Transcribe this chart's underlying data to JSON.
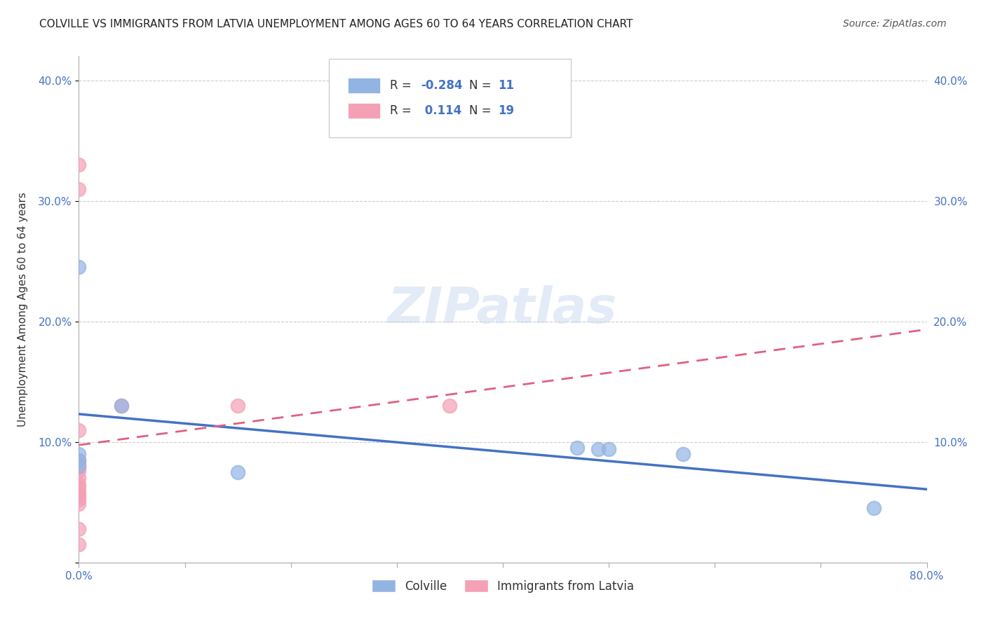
{
  "title": "COLVILLE VS IMMIGRANTS FROM LATVIA UNEMPLOYMENT AMONG AGES 60 TO 64 YEARS CORRELATION CHART",
  "source": "Source: ZipAtlas.com",
  "ylabel": "Unemployment Among Ages 60 to 64 years",
  "watermark": "ZIPatlas",
  "xlim": [
    0.0,
    0.8
  ],
  "ylim": [
    0.0,
    0.42
  ],
  "xticks": [
    0.0,
    0.1,
    0.2,
    0.3,
    0.4,
    0.5,
    0.6,
    0.7,
    0.8
  ],
  "xticklabels": [
    "0.0%",
    "",
    "",
    "",
    "",
    "",
    "",
    "",
    "80.0%"
  ],
  "yticks": [
    0.0,
    0.1,
    0.2,
    0.3,
    0.4
  ],
  "yticklabels": [
    "",
    "10.0%",
    "20.0%",
    "30.0%",
    "40.0%"
  ],
  "colville_R": -0.284,
  "colville_N": 11,
  "latvia_R": 0.114,
  "latvia_N": 19,
  "colville_color": "#92b4e3",
  "latvia_color": "#f4a0b5",
  "colville_line_color": "#4472c4",
  "latvia_line_color": "#e06080",
  "colville_points": [
    [
      0.0,
      0.245
    ],
    [
      0.0,
      0.085
    ],
    [
      0.0,
      0.08
    ],
    [
      0.04,
      0.13
    ],
    [
      0.15,
      0.075
    ],
    [
      0.47,
      0.095
    ],
    [
      0.49,
      0.094
    ],
    [
      0.5,
      0.094
    ],
    [
      0.57,
      0.09
    ],
    [
      0.75,
      0.045
    ],
    [
      0.0,
      0.09
    ]
  ],
  "latvia_points": [
    [
      0.0,
      0.33
    ],
    [
      0.0,
      0.31
    ],
    [
      0.0,
      0.11
    ],
    [
      0.0,
      0.085
    ],
    [
      0.0,
      0.082
    ],
    [
      0.0,
      0.079
    ],
    [
      0.0,
      0.076
    ],
    [
      0.0,
      0.07
    ],
    [
      0.0,
      0.065
    ],
    [
      0.0,
      0.062
    ],
    [
      0.0,
      0.058
    ],
    [
      0.0,
      0.055
    ],
    [
      0.0,
      0.052
    ],
    [
      0.0,
      0.049
    ],
    [
      0.0,
      0.028
    ],
    [
      0.0,
      0.015
    ],
    [
      0.04,
      0.13
    ],
    [
      0.15,
      0.13
    ],
    [
      0.35,
      0.13
    ]
  ],
  "background_color": "#ffffff",
  "grid_color": "#cccccc",
  "title_fontsize": 11,
  "label_fontsize": 11,
  "tick_fontsize": 11,
  "legend_fontsize": 12,
  "source_fontsize": 10
}
